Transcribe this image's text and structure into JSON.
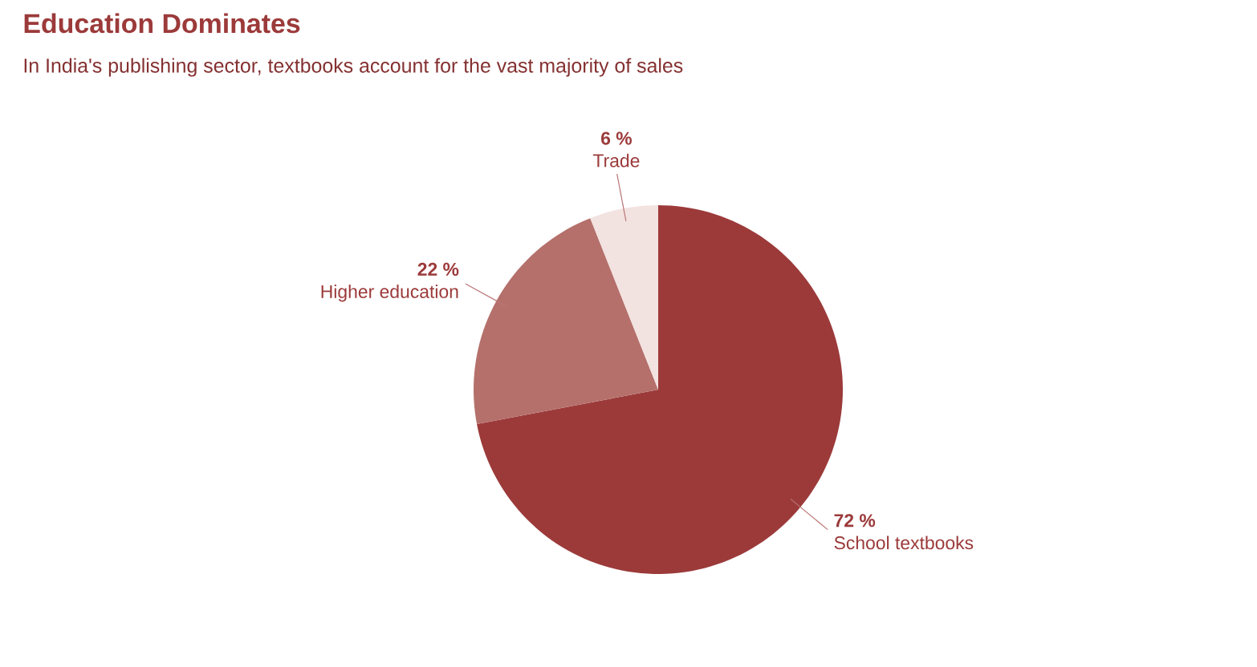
{
  "chart_data": {
    "type": "pie",
    "title": "Education Dominates",
    "subtitle": "In India's publishing sector, textbooks account for the vast majority of sales",
    "categories": [
      "School textbooks",
      "Higher education",
      "Trade"
    ],
    "values": [
      72,
      22,
      6
    ],
    "colors": [
      "#9c3a3a",
      "#b5706b",
      "#f2e2e0"
    ],
    "value_labels": [
      "72 %",
      "22 %",
      "6 %"
    ]
  }
}
